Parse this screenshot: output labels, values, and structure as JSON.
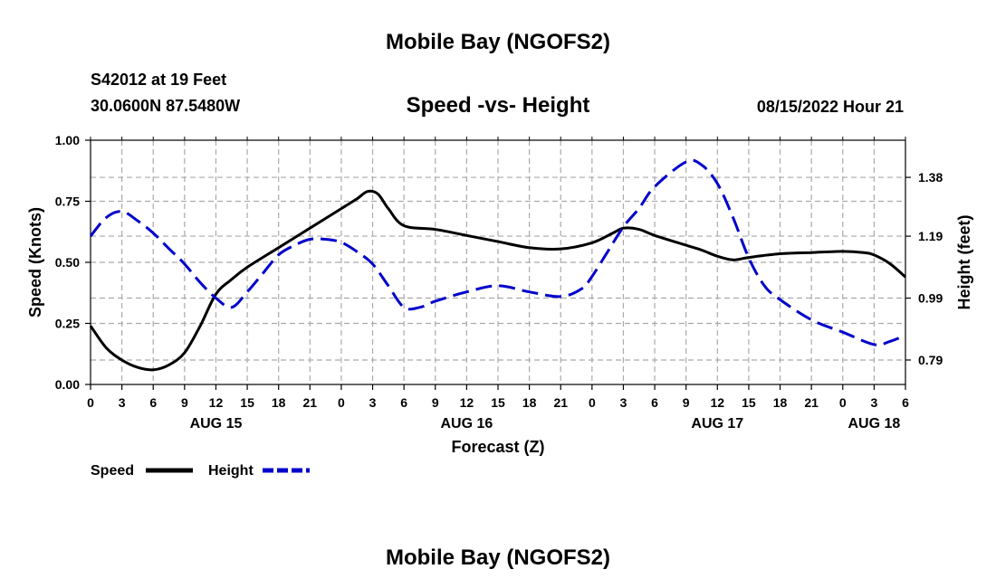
{
  "header": {
    "title": "Mobile Bay (NGOFS2)",
    "station": "S42012 at 19 Feet",
    "coords": "30.0600N  87.5480W",
    "subtitle": "Speed -vs- Height",
    "timestamp": "08/15/2022 Hour 21"
  },
  "footer": {
    "title": "Mobile Bay (NGOFS2)"
  },
  "chart_data": {
    "type": "line",
    "title": "Speed -vs- Height",
    "xlabel": "Forecast (Z)",
    "ylabel": "Speed (Knots)",
    "y2label": "Height (feet)",
    "x_unit": "hours from 08/15/2022 00Z",
    "xlim": [
      0,
      78
    ],
    "ylim": [
      0,
      1
    ],
    "y2lim": [
      0.711,
      1.5
    ],
    "grid": true,
    "x_ticks": [
      0,
      3,
      6,
      9,
      12,
      15,
      18,
      21,
      24,
      27,
      30,
      33,
      36,
      39,
      42,
      45,
      48,
      51,
      54,
      57,
      60,
      63,
      66,
      69,
      72,
      75,
      78
    ],
    "x_tick_labels": [
      "0",
      "3",
      "6",
      "9",
      "12",
      "15",
      "18",
      "21",
      "0",
      "3",
      "6",
      "9",
      "12",
      "15",
      "18",
      "21",
      "0",
      "3",
      "6",
      "9",
      "12",
      "15",
      "18",
      "21",
      "0",
      "3",
      "6"
    ],
    "day_labels": [
      {
        "x": 12,
        "label": "AUG 15"
      },
      {
        "x": 36,
        "label": "AUG 16"
      },
      {
        "x": 60,
        "label": "AUG 17"
      },
      {
        "x": 75,
        "label": "AUG 18"
      }
    ],
    "y_ticks": [
      0,
      0.25,
      0.5,
      0.75,
      1.0
    ],
    "y_tick_labels": [
      "0.00",
      "0.25",
      "0.50",
      "0.75",
      "1.00"
    ],
    "y2_ticks": [
      0.79,
      0.99,
      1.19,
      1.38
    ],
    "y2_tick_labels": [
      "0.79",
      "0.99",
      "1.19",
      "1.38"
    ],
    "series": [
      {
        "name": "Speed",
        "axis": "left",
        "color": "#000000",
        "style": "solid",
        "x": [
          0,
          1.5,
          3,
          4.5,
          6,
          7.5,
          9,
          10.5,
          12,
          13.5,
          15,
          18,
          21,
          24,
          25.5,
          26.5,
          27.5,
          28.5,
          30,
          33,
          36,
          39,
          42,
          45,
          48,
          50,
          51,
          52.5,
          54,
          57,
          58.5,
          60,
          61.5,
          63,
          66,
          69,
          72,
          74,
          75,
          76.5,
          78
        ],
        "values": [
          0.24,
          0.15,
          0.1,
          0.07,
          0.06,
          0.08,
          0.13,
          0.24,
          0.37,
          0.43,
          0.48,
          0.56,
          0.64,
          0.72,
          0.76,
          0.79,
          0.78,
          0.72,
          0.65,
          0.635,
          0.61,
          0.585,
          0.56,
          0.555,
          0.58,
          0.62,
          0.64,
          0.635,
          0.61,
          0.57,
          0.55,
          0.525,
          0.51,
          0.52,
          0.535,
          0.54,
          0.545,
          0.54,
          0.53,
          0.495,
          0.44
        ]
      },
      {
        "name": "Height",
        "axis": "right",
        "color": "#0000cc",
        "style": "dashed",
        "x": [
          0,
          1.5,
          3,
          4.5,
          6,
          7.5,
          9,
          10.5,
          12,
          13.5,
          15,
          16.5,
          18,
          19.5,
          21,
          22.5,
          24,
          25.5,
          27,
          28.5,
          30,
          31.5,
          33,
          36,
          39,
          42,
          45,
          47,
          48,
          49.5,
          51,
          52.5,
          54,
          57,
          58.5,
          60,
          61.5,
          63,
          64.5,
          66,
          69,
          72,
          75,
          76.5,
          78
        ],
        "values": [
          1.19,
          1.25,
          1.27,
          1.24,
          1.2,
          1.15,
          1.1,
          1.04,
          0.99,
          0.96,
          1.01,
          1.07,
          1.13,
          1.16,
          1.18,
          1.18,
          1.17,
          1.14,
          1.1,
          1.03,
          0.96,
          0.96,
          0.98,
          1.01,
          1.03,
          1.01,
          0.995,
          1.02,
          1.06,
          1.14,
          1.22,
          1.28,
          1.35,
          1.43,
          1.42,
          1.36,
          1.25,
          1.12,
          1.03,
          0.985,
          0.92,
          0.88,
          0.84,
          0.85,
          0.87
        ]
      }
    ],
    "legend": {
      "position": "bottom-left",
      "entries": [
        {
          "label": "Speed",
          "color": "#000000",
          "style": "solid"
        },
        {
          "label": "Height",
          "color": "#0000cc",
          "style": "dashed"
        }
      ]
    }
  }
}
